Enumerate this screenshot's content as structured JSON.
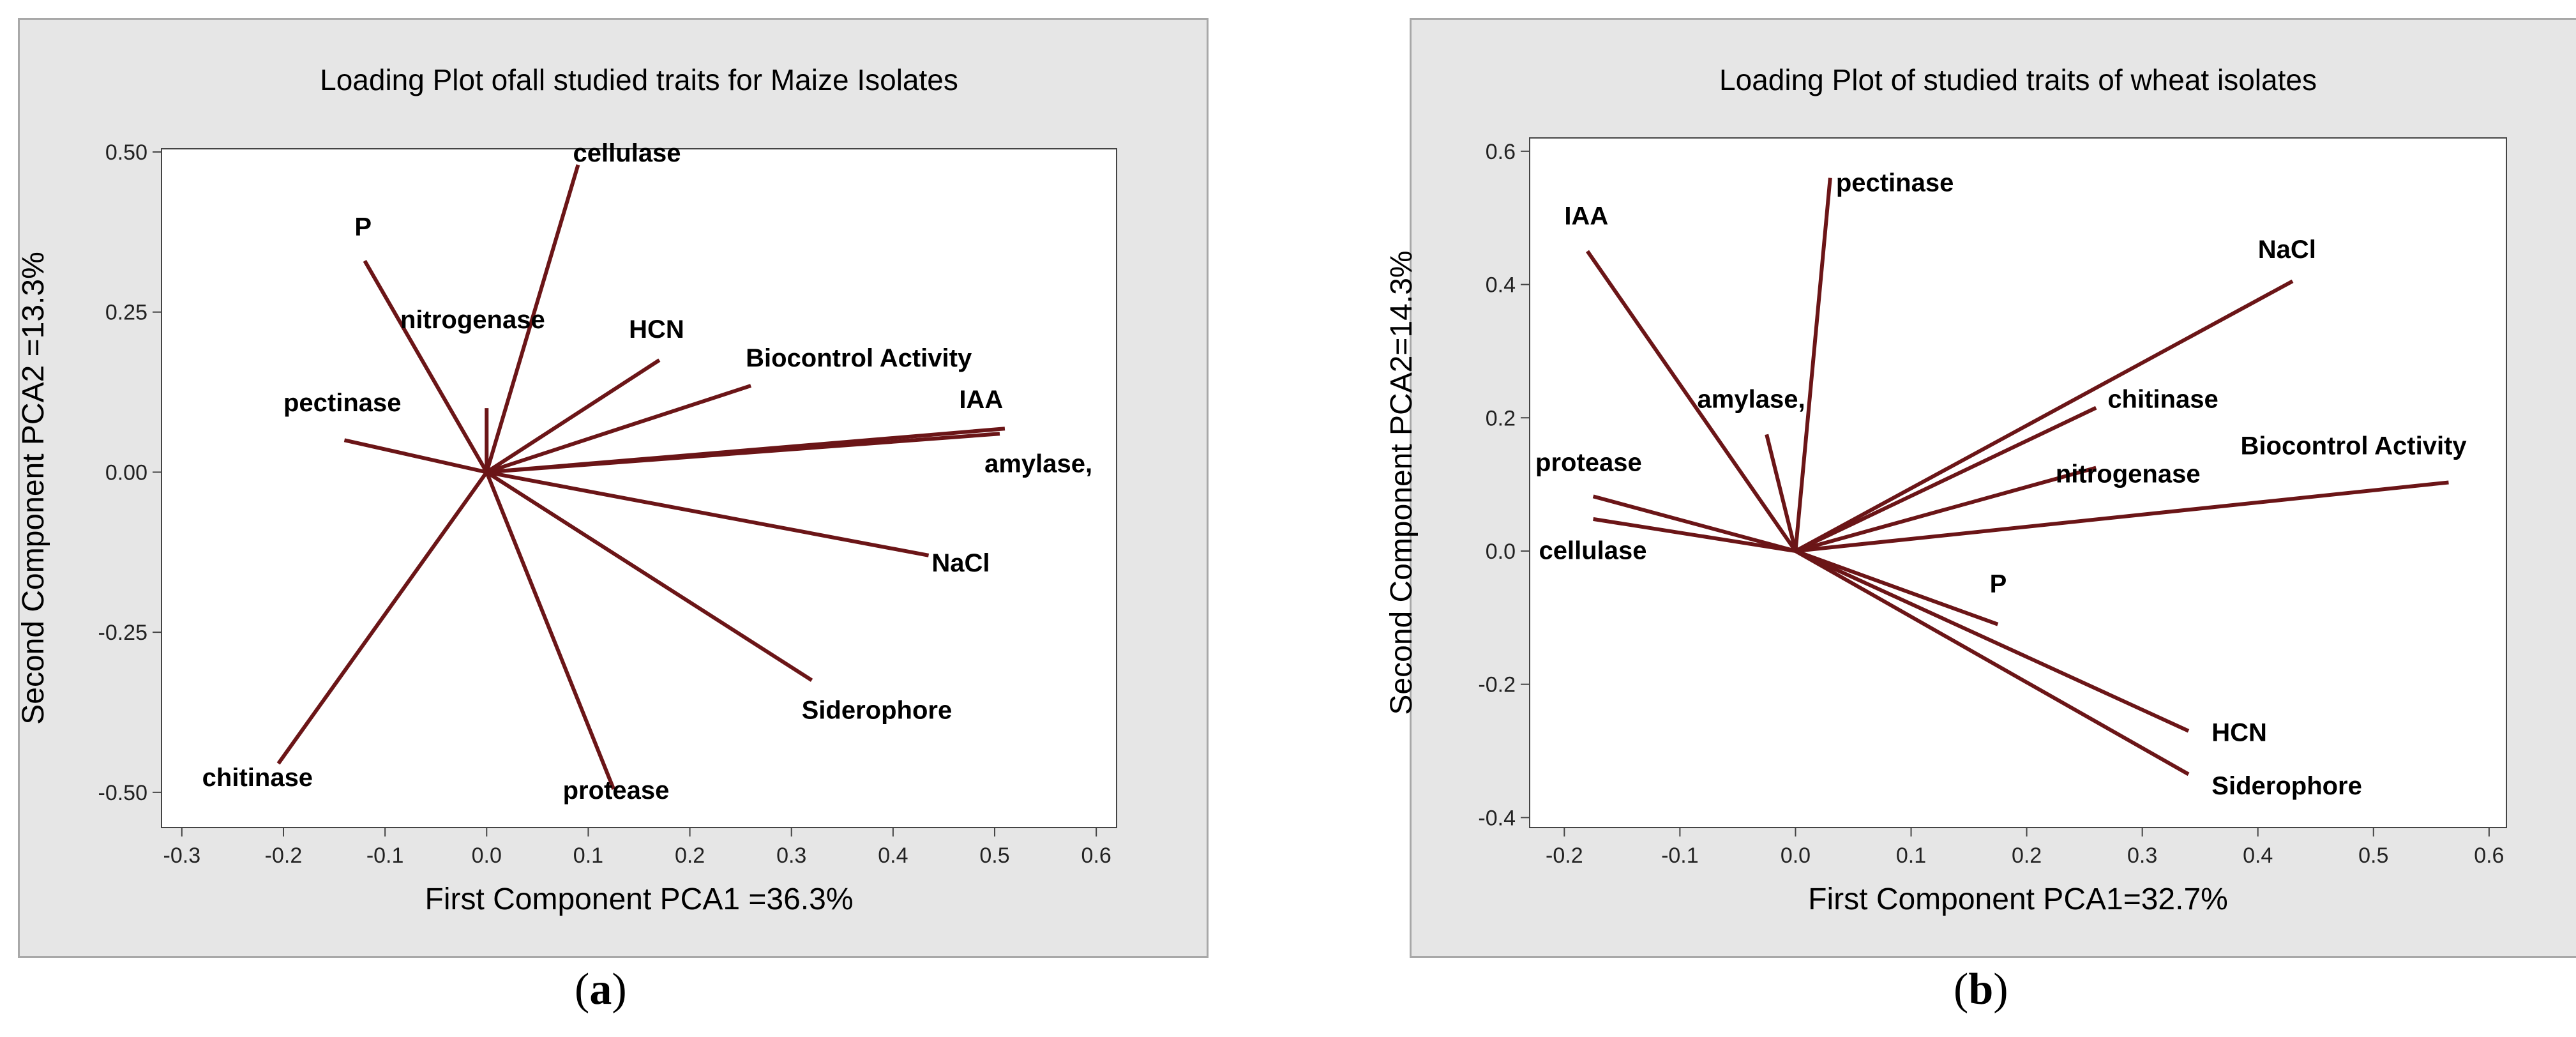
{
  "chart_data": [
    {
      "type": "line",
      "title": "Loading Plot ofall studied traits for Maize Isolates",
      "xlabel": "First Component PCA1 =36.3%",
      "ylabel": "Second Component PCA2 =13.3%",
      "xlim": [
        -0.32,
        0.62
      ],
      "ylim": [
        -0.555,
        0.505
      ],
      "xticks": [
        -0.3,
        -0.2,
        -0.1,
        0.0,
        0.1,
        0.2,
        0.3,
        0.4,
        0.5,
        0.6
      ],
      "xtick_labels": [
        "-0.3",
        "-0.2",
        "-0.1",
        "0.0",
        "0.1",
        "0.2",
        "0.3",
        "0.4",
        "0.5",
        "0.6"
      ],
      "yticks": [
        0.5,
        0.25,
        0.0,
        -0.25,
        -0.5
      ],
      "ytick_labels": [
        "0.50",
        "0.25",
        "0.00",
        "-0.25",
        "-0.50"
      ],
      "caption": "a",
      "loadings": [
        {
          "label": "cellulase",
          "x": 0.09,
          "y": 0.48,
          "lx": 0.085,
          "ly": 0.485,
          "anchor": "start"
        },
        {
          "label": "P",
          "x": -0.12,
          "y": 0.33,
          "lx": -0.13,
          "ly": 0.37,
          "anchor": "start"
        },
        {
          "label": "nitrogenase",
          "x": 0.0,
          "y": 0.1,
          "lx": -0.085,
          "ly": 0.225,
          "anchor": "start"
        },
        {
          "label": "HCN",
          "x": 0.17,
          "y": 0.175,
          "lx": 0.14,
          "ly": 0.21,
          "anchor": "start"
        },
        {
          "label": "Biocontrol Activity",
          "x": 0.26,
          "y": 0.135,
          "lx": 0.255,
          "ly": 0.165,
          "anchor": "start"
        },
        {
          "label": "IAA",
          "x": 0.51,
          "y": 0.068,
          "lx": 0.465,
          "ly": 0.1,
          "anchor": "start"
        },
        {
          "label": "amylase,",
          "x": 0.505,
          "y": 0.06,
          "lx": 0.49,
          "ly": 0.0,
          "anchor": "start"
        },
        {
          "label": "pectinase",
          "x": -0.14,
          "y": 0.05,
          "lx": -0.2,
          "ly": 0.095,
          "anchor": "start"
        },
        {
          "label": "NaCl",
          "x": 0.435,
          "y": -0.13,
          "lx": 0.438,
          "ly": -0.155,
          "anchor": "start"
        },
        {
          "label": "Siderophore",
          "x": 0.32,
          "y": -0.325,
          "lx": 0.31,
          "ly": -0.385,
          "anchor": "start"
        },
        {
          "label": "protease",
          "x": 0.125,
          "y": -0.495,
          "lx": 0.075,
          "ly": -0.51,
          "anchor": "start"
        },
        {
          "label": "chitinase",
          "x": -0.205,
          "y": -0.455,
          "lx": -0.28,
          "ly": -0.49,
          "anchor": "start"
        }
      ]
    },
    {
      "type": "line",
      "title": "Loading Plot of studied traits of wheat isolates",
      "xlabel": "First Component PCA1=32.7%",
      "ylabel": "Second Component PCA2=14.3%",
      "xlim": [
        -0.23,
        0.615
      ],
      "ylim": [
        -0.415,
        0.62
      ],
      "xticks": [
        -0.2,
        -0.1,
        0.0,
        0.1,
        0.2,
        0.3,
        0.4,
        0.5,
        0.6
      ],
      "xtick_labels": [
        "-0.2",
        "-0.1",
        "0.0",
        "0.1",
        "0.2",
        "0.3",
        "0.4",
        "0.5",
        "0.6"
      ],
      "yticks": [
        0.6,
        0.4,
        0.2,
        0.0,
        -0.2,
        -0.4
      ],
      "ytick_labels": [
        "0.6",
        "0.4",
        "0.2",
        "0.0",
        "-0.2",
        "-0.4"
      ],
      "caption": "b",
      "loadings": [
        {
          "label": "pectinase",
          "x": 0.03,
          "y": 0.56,
          "lx": 0.035,
          "ly": 0.54,
          "anchor": "start"
        },
        {
          "label": "IAA",
          "x": -0.18,
          "y": 0.45,
          "lx": -0.2,
          "ly": 0.49,
          "anchor": "start"
        },
        {
          "label": "NaCl",
          "x": 0.43,
          "y": 0.405,
          "lx": 0.4,
          "ly": 0.44,
          "anchor": "start"
        },
        {
          "label": "amylase,",
          "x": -0.025,
          "y": 0.175,
          "lx": -0.085,
          "ly": 0.215,
          "anchor": "start"
        },
        {
          "label": "chitinase",
          "x": 0.26,
          "y": 0.215,
          "lx": 0.27,
          "ly": 0.215,
          "anchor": "start"
        },
        {
          "label": "Biocontrol Activity",
          "x": 0.565,
          "y": 0.103,
          "lx": 0.385,
          "ly": 0.145,
          "anchor": "start"
        },
        {
          "label": "nitrogenase",
          "x": 0.26,
          "y": 0.125,
          "lx": 0.225,
          "ly": 0.103,
          "anchor": "start"
        },
        {
          "label": "protease",
          "x": -0.175,
          "y": 0.082,
          "lx": -0.225,
          "ly": 0.12,
          "anchor": "start"
        },
        {
          "label": "cellulase",
          "x": -0.175,
          "y": 0.048,
          "lx": -0.222,
          "ly": -0.012,
          "anchor": "start"
        },
        {
          "label": "P",
          "x": 0.175,
          "y": -0.11,
          "lx": 0.168,
          "ly": -0.062,
          "anchor": "start"
        },
        {
          "label": "HCN",
          "x": 0.34,
          "y": -0.27,
          "lx": 0.36,
          "ly": -0.285,
          "anchor": "start"
        },
        {
          "label": "Siderophore",
          "x": 0.34,
          "y": -0.335,
          "lx": 0.36,
          "ly": -0.365,
          "anchor": "start"
        }
      ]
    }
  ]
}
